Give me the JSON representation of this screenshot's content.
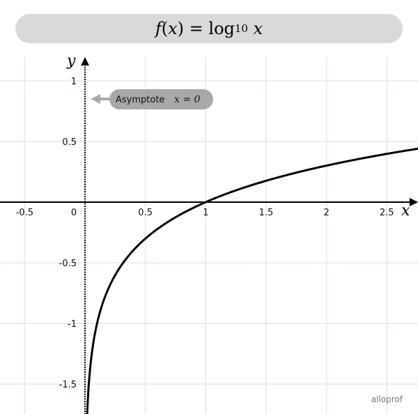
{
  "chart_data": {
    "type": "line",
    "title": "f(x) = log10 x",
    "title_parts": {
      "f": "f",
      "lparen": "(",
      "x": "x",
      "rparen_eq": ") = log",
      "sub": "10"
    },
    "xlabel": "x",
    "ylabel": "y",
    "xlim": [
      -0.7,
      2.76
    ],
    "ylim": [
      -1.75,
      1.18
    ],
    "grid": true,
    "x_ticks": [
      -0.5,
      0,
      0.5,
      1,
      1.5,
      2,
      2.5
    ],
    "x_tick_labels": [
      "-0.5",
      "0",
      "0.5",
      "1",
      "1.5",
      "2",
      "2.5"
    ],
    "y_ticks": [
      1,
      0.5,
      -0.5,
      -1,
      -1.5
    ],
    "y_tick_labels": [
      "1",
      "0.5",
      "-0.5",
      "-1",
      "-1.5"
    ],
    "series": [
      {
        "function": "log10(x)",
        "x_range": [
          0.0178,
          2.76
        ],
        "color": "#000000"
      }
    ],
    "asymptote": {
      "x": 0,
      "style": "dotted",
      "label": "Asymptote",
      "label_math": "x = 0",
      "label_bg": "#a8a8a8"
    },
    "grid_color": "#ece6dc"
  },
  "brand": "alloprof"
}
